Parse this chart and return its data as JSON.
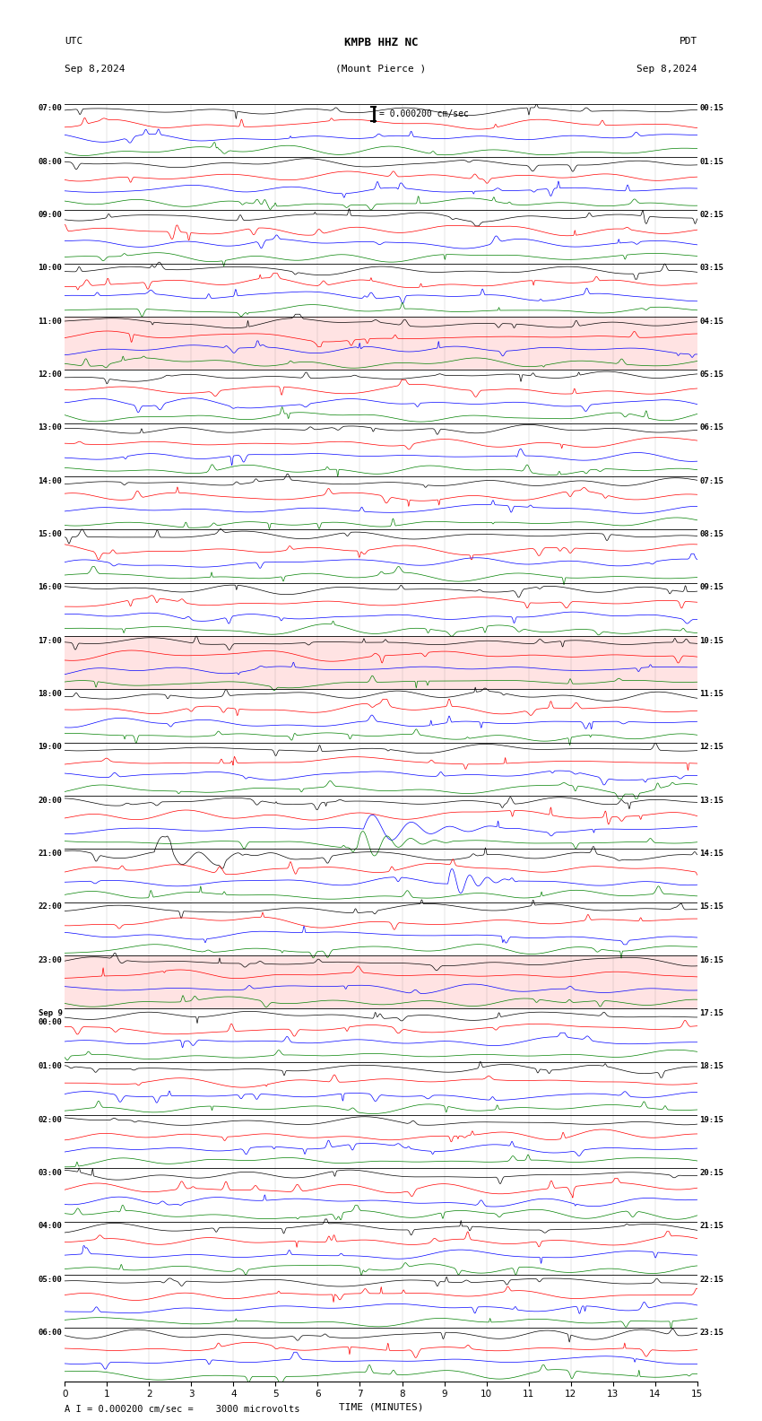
{
  "title_line1": "KMPB HHZ NC",
  "title_line2": "(Mount Pierce )",
  "utc_label": "UTC",
  "pdt_label": "PDT",
  "date_left": "Sep 8,2024",
  "date_right": "Sep 8,2024",
  "scale_label": "= 0.000200 cm/sec",
  "bottom_label": "A I = 0.000200 cm/sec =    3000 microvolts",
  "xlabel": "TIME (MINUTES)",
  "trace_colors": [
    "black",
    "red",
    "blue",
    "green"
  ],
  "num_minutes": 15,
  "background_color": "white",
  "utc_times": [
    "07:00",
    "08:00",
    "09:00",
    "10:00",
    "11:00",
    "12:00",
    "13:00",
    "14:00",
    "15:00",
    "16:00",
    "17:00",
    "18:00",
    "19:00",
    "20:00",
    "21:00",
    "22:00",
    "23:00",
    "Sep 9\n00:00",
    "01:00",
    "02:00",
    "03:00",
    "04:00",
    "05:00",
    "06:00"
  ],
  "pdt_times": [
    "00:15",
    "01:15",
    "02:15",
    "03:15",
    "04:15",
    "05:15",
    "06:15",
    "07:15",
    "08:15",
    "09:15",
    "10:15",
    "11:15",
    "12:15",
    "13:15",
    "14:15",
    "15:15",
    "16:15",
    "17:15",
    "18:15",
    "19:15",
    "20:15",
    "21:15",
    "22:15",
    "23:15"
  ],
  "highlighted_blocks": [
    4,
    10,
    16
  ],
  "highlight_color": "#ffcccc",
  "fig_width": 8.5,
  "fig_height": 15.84,
  "dpi": 100,
  "line_width": 0.5
}
